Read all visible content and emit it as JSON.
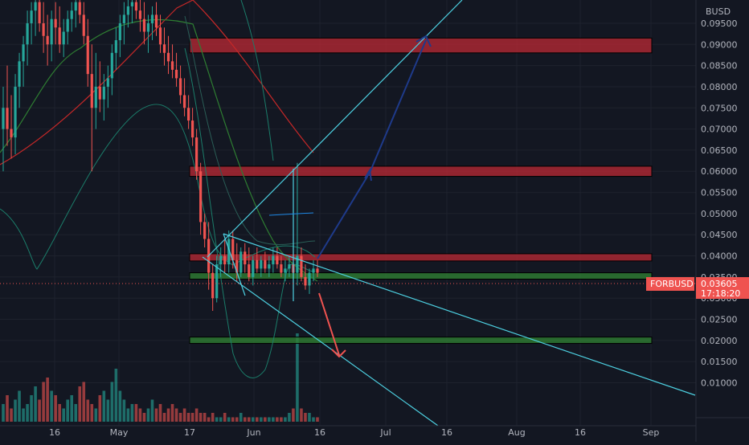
{
  "currency_label": "BUSD",
  "symbol_tag": "FORBUSD",
  "last_price_label": "0.03605",
  "countdown": "17:18:20",
  "colors": {
    "background": "#131722",
    "up": "#26a69a",
    "down": "#ef5350",
    "resistance_zone": "#b22833",
    "support_zone": "#2e7d32",
    "trendline": "#4dd0e1",
    "bb_band": "#1b7d6a",
    "ma_red": "#c62828",
    "ma_green": "#2e7d32",
    "arrow_up": "#1e3a8a",
    "arrow_down": "#ef5350"
  },
  "chart_data": {
    "type": "candlestick",
    "y_axis": {
      "min": 0.0055,
      "max": 0.0975,
      "ticks": [
        "0.01000",
        "0.01500",
        "0.02000",
        "0.02500",
        "0.03000",
        "0.03500",
        "0.04000",
        "0.04500",
        "0.05000",
        "0.05500",
        "0.06000",
        "0.06500",
        "0.07000",
        "0.07500",
        "0.08000",
        "0.08500",
        "0.09000",
        "0.09500"
      ],
      "scale": "linear"
    },
    "x_axis": {
      "tick_labels": [
        "16",
        "May",
        "17",
        "Jun",
        "16",
        "Jul",
        "16",
        "Aug",
        "16",
        "Sep"
      ]
    },
    "candles": [
      [
        0.07,
        0.08,
        0.06,
        0.075
      ],
      [
        0.075,
        0.085,
        0.066,
        0.07
      ],
      [
        0.07,
        0.078,
        0.063,
        0.068
      ],
      [
        0.068,
        0.083,
        0.064,
        0.08
      ],
      [
        0.08,
        0.088,
        0.075,
        0.086
      ],
      [
        0.086,
        0.092,
        0.08,
        0.09
      ],
      [
        0.09,
        0.098,
        0.085,
        0.095
      ],
      [
        0.095,
        0.1,
        0.09,
        0.098
      ],
      [
        0.098,
        0.104,
        0.092,
        0.1
      ],
      [
        0.1,
        0.104,
        0.093,
        0.095
      ],
      [
        0.095,
        0.1,
        0.088,
        0.092
      ],
      [
        0.092,
        0.097,
        0.085,
        0.09
      ],
      [
        0.09,
        0.098,
        0.086,
        0.096
      ],
      [
        0.096,
        0.1,
        0.09,
        0.094
      ],
      [
        0.094,
        0.099,
        0.088,
        0.09
      ],
      [
        0.09,
        0.096,
        0.087,
        0.093
      ],
      [
        0.093,
        0.098,
        0.09,
        0.096
      ],
      [
        0.096,
        0.1,
        0.093,
        0.098
      ],
      [
        0.098,
        0.103,
        0.094,
        0.1
      ],
      [
        0.1,
        0.104,
        0.095,
        0.097
      ],
      [
        0.097,
        0.1,
        0.09,
        0.092
      ],
      [
        0.092,
        0.096,
        0.08,
        0.083
      ],
      [
        0.083,
        0.09,
        0.06,
        0.075
      ],
      [
        0.075,
        0.088,
        0.07,
        0.08
      ],
      [
        0.08,
        0.086,
        0.074,
        0.077
      ],
      [
        0.077,
        0.083,
        0.072,
        0.08
      ],
      [
        0.08,
        0.085,
        0.075,
        0.082
      ],
      [
        0.082,
        0.09,
        0.078,
        0.088
      ],
      [
        0.088,
        0.094,
        0.084,
        0.091
      ],
      [
        0.091,
        0.097,
        0.087,
        0.095
      ],
      [
        0.095,
        0.1,
        0.09,
        0.097
      ],
      [
        0.097,
        0.102,
        0.094,
        0.099
      ],
      [
        0.099,
        0.103,
        0.095,
        0.1
      ],
      [
        0.1,
        0.104,
        0.096,
        0.098
      ],
      [
        0.098,
        0.103,
        0.093,
        0.096
      ],
      [
        0.096,
        0.1,
        0.09,
        0.093
      ],
      [
        0.093,
        0.097,
        0.088,
        0.095
      ],
      [
        0.095,
        0.099,
        0.091,
        0.097
      ],
      [
        0.097,
        0.1,
        0.092,
        0.094
      ],
      [
        0.094,
        0.097,
        0.088,
        0.09
      ],
      [
        0.09,
        0.094,
        0.085,
        0.088
      ],
      [
        0.088,
        0.092,
        0.083,
        0.086
      ],
      [
        0.086,
        0.09,
        0.082,
        0.084
      ],
      [
        0.084,
        0.088,
        0.08,
        0.082
      ],
      [
        0.082,
        0.085,
        0.076,
        0.078
      ],
      [
        0.078,
        0.082,
        0.073,
        0.075
      ],
      [
        0.075,
        0.078,
        0.07,
        0.072
      ],
      [
        0.072,
        0.075,
        0.066,
        0.068
      ],
      [
        0.068,
        0.07,
        0.058,
        0.06
      ],
      [
        0.06,
        0.062,
        0.045,
        0.048
      ],
      [
        0.048,
        0.05,
        0.042,
        0.044
      ],
      [
        0.044,
        0.048,
        0.032,
        0.036
      ],
      [
        0.036,
        0.038,
        0.027,
        0.03
      ],
      [
        0.03,
        0.04,
        0.029,
        0.038
      ],
      [
        0.038,
        0.042,
        0.035,
        0.04
      ],
      [
        0.04,
        0.044,
        0.036,
        0.038
      ],
      [
        0.038,
        0.046,
        0.036,
        0.044
      ],
      [
        0.044,
        0.046,
        0.037,
        0.039
      ],
      [
        0.039,
        0.043,
        0.034,
        0.036
      ],
      [
        0.036,
        0.042,
        0.035,
        0.041
      ],
      [
        0.041,
        0.043,
        0.036,
        0.038
      ],
      [
        0.038,
        0.042,
        0.034,
        0.035
      ],
      [
        0.035,
        0.04,
        0.033,
        0.039
      ],
      [
        0.039,
        0.042,
        0.036,
        0.037
      ],
      [
        0.037,
        0.04,
        0.035,
        0.039
      ],
      [
        0.039,
        0.041,
        0.036,
        0.037
      ],
      [
        0.037,
        0.04,
        0.035,
        0.038
      ],
      [
        0.038,
        0.042,
        0.036,
        0.04
      ],
      [
        0.04,
        0.042,
        0.037,
        0.038
      ],
      [
        0.038,
        0.04,
        0.035,
        0.036
      ],
      [
        0.036,
        0.039,
        0.034,
        0.037
      ],
      [
        0.037,
        0.04,
        0.035,
        0.038
      ],
      [
        0.038,
        0.042,
        0.032,
        0.036
      ],
      [
        0.036,
        0.062,
        0.033,
        0.04
      ],
      [
        0.04,
        0.042,
        0.034,
        0.035
      ],
      [
        0.035,
        0.038,
        0.032,
        0.033
      ],
      [
        0.033,
        0.037,
        0.031,
        0.036
      ],
      [
        0.036,
        0.039,
        0.034,
        0.037
      ],
      [
        0.037,
        0.039,
        0.035,
        0.036
      ]
    ],
    "zones": [
      {
        "type": "resistance",
        "low": 0.088,
        "high": 0.0915
      },
      {
        "type": "resistance",
        "low": 0.0588,
        "high": 0.0612
      },
      {
        "type": "resistance",
        "low": 0.0388,
        "high": 0.0405
      },
      {
        "type": "support",
        "low": 0.0345,
        "high": 0.036
      },
      {
        "type": "support",
        "low": 0.0193,
        "high": 0.0208
      }
    ],
    "last_price": 0.03605
  }
}
